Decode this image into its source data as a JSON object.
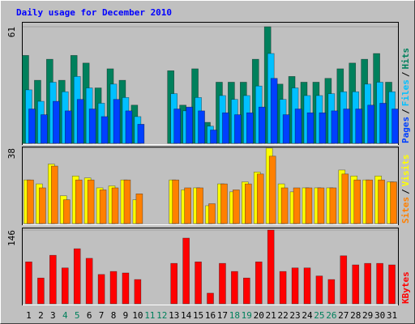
{
  "chart_data": {
    "type": "bar",
    "title": "Daily usage for December 2010",
    "categories": [
      1,
      2,
      3,
      4,
      5,
      6,
      7,
      8,
      9,
      10,
      11,
      12,
      13,
      14,
      15,
      16,
      17,
      18,
      19,
      20,
      21,
      22,
      23,
      24,
      25,
      26,
      27,
      28,
      29,
      30,
      31
    ],
    "category_colors": [
      "#000000",
      "#000000",
      "#000000",
      "#00805c",
      "#00805c",
      "#000000",
      "#000000",
      "#000000",
      "#000000",
      "#000000",
      "#00805c",
      "#00805c",
      "#000000",
      "#000000",
      "#000000",
      "#000000",
      "#000000",
      "#00805c",
      "#00805c",
      "#000000",
      "#000000",
      "#000000",
      "#000000",
      "#000000",
      "#00805c",
      "#00805c",
      "#000000",
      "#000000",
      "#000000",
      "#000000",
      "#000000"
    ],
    "legend_separator": "/",
    "panels": [
      {
        "ylim": [
          0,
          61
        ],
        "yticks": [
          61
        ],
        "series": [
          {
            "name": "Hits",
            "color": "#00805c",
            "values": [
              46,
              33,
              44,
              33,
              46,
              42,
              29,
              39,
              33,
              20,
              0,
              0,
              38,
              20,
              39,
              11,
              32,
              32,
              32,
              44,
              61,
              31,
              35,
              32,
              32,
              34,
              39,
              42,
              44,
              47,
              32
            ]
          },
          {
            "name": "Files",
            "color": "#00c0ff",
            "values": [
              28,
              22,
              32,
              27,
              35,
              29,
              21,
              31,
              24,
              14,
              0,
              0,
              26,
              17,
              24,
              9,
              25,
              23,
              25,
              30,
              47,
              23,
              29,
              25,
              25,
              26,
              27,
              27,
              31,
              32,
              27
            ]
          },
          {
            "name": "Pages",
            "color": "#0040ff",
            "values": [
              18,
              15,
              22,
              17,
              23,
              18,
              14,
              23,
              17,
              10,
              0,
              0,
              18,
              19,
              17,
              7,
              16,
              15,
              16,
              19,
              34,
              15,
              18,
              16,
              16,
              17,
              18,
              18,
              20,
              21,
              18
            ]
          }
        ]
      },
      {
        "ylim": [
          0,
          38
        ],
        "yticks": [
          38
        ],
        "series": [
          {
            "name": "Visits",
            "color": "#ffff00",
            "values": [
              22,
              20,
              30,
              14,
              24,
              23,
              18,
              19,
              22,
              12,
              0,
              0,
              22,
              17,
              18,
              9,
              20,
              16,
              21,
              26,
              38,
              20,
              16,
              18,
              18,
              18,
              27,
              24,
              22,
              24,
              21
            ]
          },
          {
            "name": "Sites",
            "color": "#ff8000",
            "values": [
              22,
              18,
              29,
              12,
              22,
              22,
              17,
              18,
              22,
              15,
              0,
              0,
              22,
              18,
              18,
              10,
              20,
              17,
              20,
              25,
              34,
              18,
              18,
              18,
              18,
              18,
              25,
              22,
              22,
              22,
              21
            ]
          }
        ]
      },
      {
        "ylim": [
          0,
          146
        ],
        "yticks": [
          146
        ],
        "series": [
          {
            "name": "KBytes",
            "color": "#ff0000",
            "values": [
              83,
              51,
              96,
              71,
              109,
              90,
              58,
              64,
              61,
              48,
              0,
              0,
              80,
              130,
              83,
              21,
              80,
              64,
              51,
              83,
              146,
              64,
              71,
              71,
              55,
              48,
              95,
              77,
              80,
              80,
              77
            ]
          }
        ]
      }
    ]
  }
}
